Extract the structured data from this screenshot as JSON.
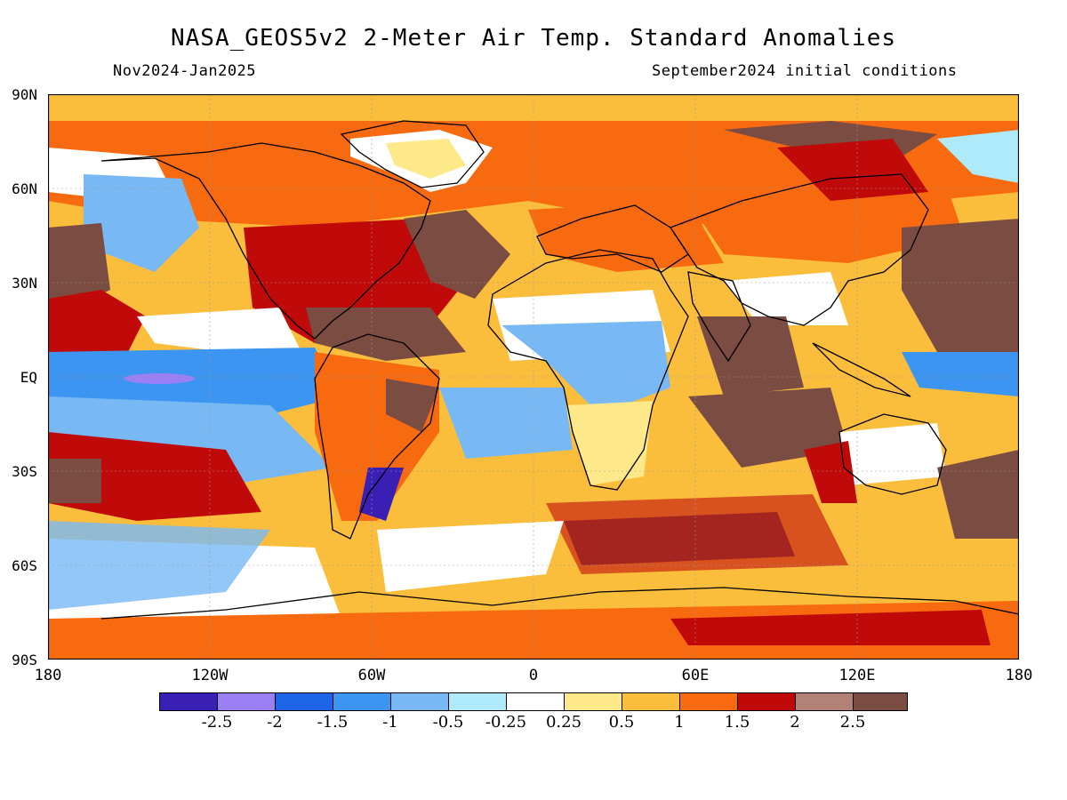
{
  "title": "NASA_GEOS5v2 2-Meter Air Temp. Standard Anomalies",
  "period": "Nov2024-Jan2025",
  "init": "September2024 initial conditions",
  "lat_labels": [
    "90N",
    "60N",
    "30N",
    "EQ",
    "30S",
    "60S",
    "90S"
  ],
  "lon_labels": [
    "180",
    "120W",
    "60W",
    "0",
    "60E",
    "120E",
    "180"
  ],
  "colorbar": {
    "colors": [
      "#3a1fb4",
      "#9a7ff5",
      "#1e64e6",
      "#3c95f0",
      "#78b9f5",
      "#aeeafa",
      "#ffffff",
      "#fde98a",
      "#fbbd3c",
      "#f76a10",
      "#c00a0a",
      "#b28276",
      "#7a4c42"
    ],
    "labels": [
      "-2.5",
      "-2",
      "-1.5",
      "-1",
      "-0.5",
      "-0.25",
      "0.25",
      "0.5",
      "1",
      "1.5",
      "2",
      "2.5"
    ]
  }
}
